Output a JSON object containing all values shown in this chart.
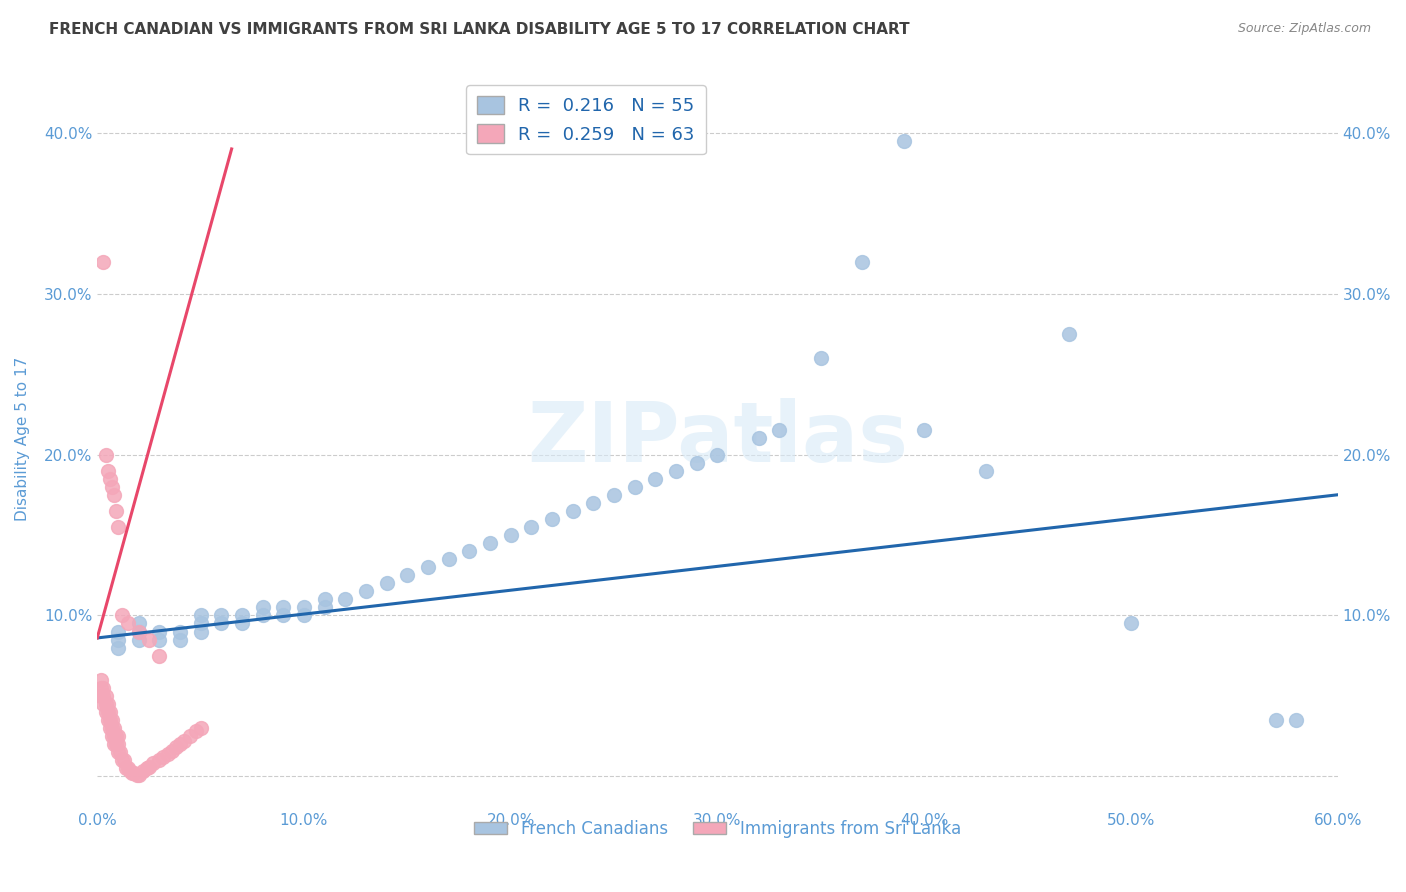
{
  "title": "FRENCH CANADIAN VS IMMIGRANTS FROM SRI LANKA DISABILITY AGE 5 TO 17 CORRELATION CHART",
  "source": "Source: ZipAtlas.com",
  "ylabel": "Disability Age 5 to 17",
  "xlim": [
    0.0,
    0.6
  ],
  "ylim": [
    -0.02,
    0.44
  ],
  "xticks": [
    0.0,
    0.1,
    0.2,
    0.3,
    0.4,
    0.5,
    0.6
  ],
  "xtick_labels": [
    "0.0%",
    "10.0%",
    "20.0%",
    "30.0%",
    "40.0%",
    "50.0%",
    "60.0%"
  ],
  "yticks": [
    0.0,
    0.1,
    0.2,
    0.3,
    0.4
  ],
  "ytick_labels": [
    "",
    "10.0%",
    "20.0%",
    "30.0%",
    "40.0%"
  ],
  "right_ytick_labels": [
    "",
    "10.0%",
    "20.0%",
    "30.0%",
    "40.0%"
  ],
  "blue_R": "0.216",
  "blue_N": "55",
  "pink_R": "0.259",
  "pink_N": "63",
  "legend_label_blue": "French Canadians",
  "legend_label_pink": "Immigrants from Sri Lanka",
  "blue_color": "#a8c4e0",
  "pink_color": "#f4a7b9",
  "blue_line_color": "#2166ac",
  "pink_line_color": "#e8476a",
  "title_color": "#404040",
  "axis_color": "#5b9bd5",
  "grid_color": "#cccccc",
  "watermark": "ZIPatlas",
  "blue_scatter_x": [
    0.01,
    0.01,
    0.01,
    0.02,
    0.02,
    0.02,
    0.03,
    0.03,
    0.04,
    0.04,
    0.05,
    0.05,
    0.05,
    0.06,
    0.06,
    0.07,
    0.07,
    0.08,
    0.08,
    0.09,
    0.09,
    0.1,
    0.1,
    0.11,
    0.11,
    0.12,
    0.13,
    0.14,
    0.15,
    0.16,
    0.17,
    0.18,
    0.19,
    0.2,
    0.21,
    0.22,
    0.23,
    0.24,
    0.25,
    0.26,
    0.27,
    0.28,
    0.29,
    0.3,
    0.32,
    0.33,
    0.35,
    0.37,
    0.39,
    0.4,
    0.43,
    0.47,
    0.5,
    0.57,
    0.58
  ],
  "blue_scatter_y": [
    0.09,
    0.085,
    0.08,
    0.095,
    0.09,
    0.085,
    0.09,
    0.085,
    0.09,
    0.085,
    0.1,
    0.095,
    0.09,
    0.1,
    0.095,
    0.1,
    0.095,
    0.105,
    0.1,
    0.105,
    0.1,
    0.105,
    0.1,
    0.11,
    0.105,
    0.11,
    0.115,
    0.12,
    0.125,
    0.13,
    0.135,
    0.14,
    0.145,
    0.15,
    0.155,
    0.16,
    0.165,
    0.17,
    0.175,
    0.18,
    0.185,
    0.19,
    0.195,
    0.2,
    0.21,
    0.215,
    0.26,
    0.32,
    0.395,
    0.215,
    0.19,
    0.275,
    0.095,
    0.035,
    0.035
  ],
  "pink_scatter_x": [
    0.002,
    0.002,
    0.002,
    0.003,
    0.003,
    0.003,
    0.004,
    0.004,
    0.004,
    0.005,
    0.005,
    0.005,
    0.006,
    0.006,
    0.006,
    0.007,
    0.007,
    0.007,
    0.008,
    0.008,
    0.008,
    0.009,
    0.009,
    0.01,
    0.01,
    0.01,
    0.011,
    0.012,
    0.013,
    0.014,
    0.015,
    0.016,
    0.017,
    0.018,
    0.019,
    0.02,
    0.022,
    0.024,
    0.025,
    0.027,
    0.03,
    0.032,
    0.034,
    0.036,
    0.038,
    0.04,
    0.042,
    0.045,
    0.048,
    0.05,
    0.003,
    0.004,
    0.005,
    0.006,
    0.007,
    0.008,
    0.009,
    0.01,
    0.012,
    0.015,
    0.02,
    0.025,
    0.03
  ],
  "pink_scatter_y": [
    0.06,
    0.055,
    0.05,
    0.055,
    0.05,
    0.045,
    0.05,
    0.045,
    0.04,
    0.045,
    0.04,
    0.035,
    0.04,
    0.035,
    0.03,
    0.035,
    0.03,
    0.025,
    0.03,
    0.025,
    0.02,
    0.025,
    0.02,
    0.025,
    0.02,
    0.015,
    0.015,
    0.01,
    0.01,
    0.005,
    0.005,
    0.003,
    0.002,
    0.002,
    0.001,
    0.001,
    0.003,
    0.005,
    0.006,
    0.008,
    0.01,
    0.012,
    0.014,
    0.016,
    0.018,
    0.02,
    0.022,
    0.025,
    0.028,
    0.03,
    0.32,
    0.2,
    0.19,
    0.185,
    0.18,
    0.175,
    0.165,
    0.155,
    0.1,
    0.095,
    0.09,
    0.085,
    0.075
  ],
  "blue_trend_x": [
    0.0,
    0.6
  ],
  "blue_trend_y": [
    0.086,
    0.175
  ],
  "pink_trend_x": [
    0.0,
    0.065
  ],
  "pink_trend_y": [
    0.086,
    0.39
  ]
}
